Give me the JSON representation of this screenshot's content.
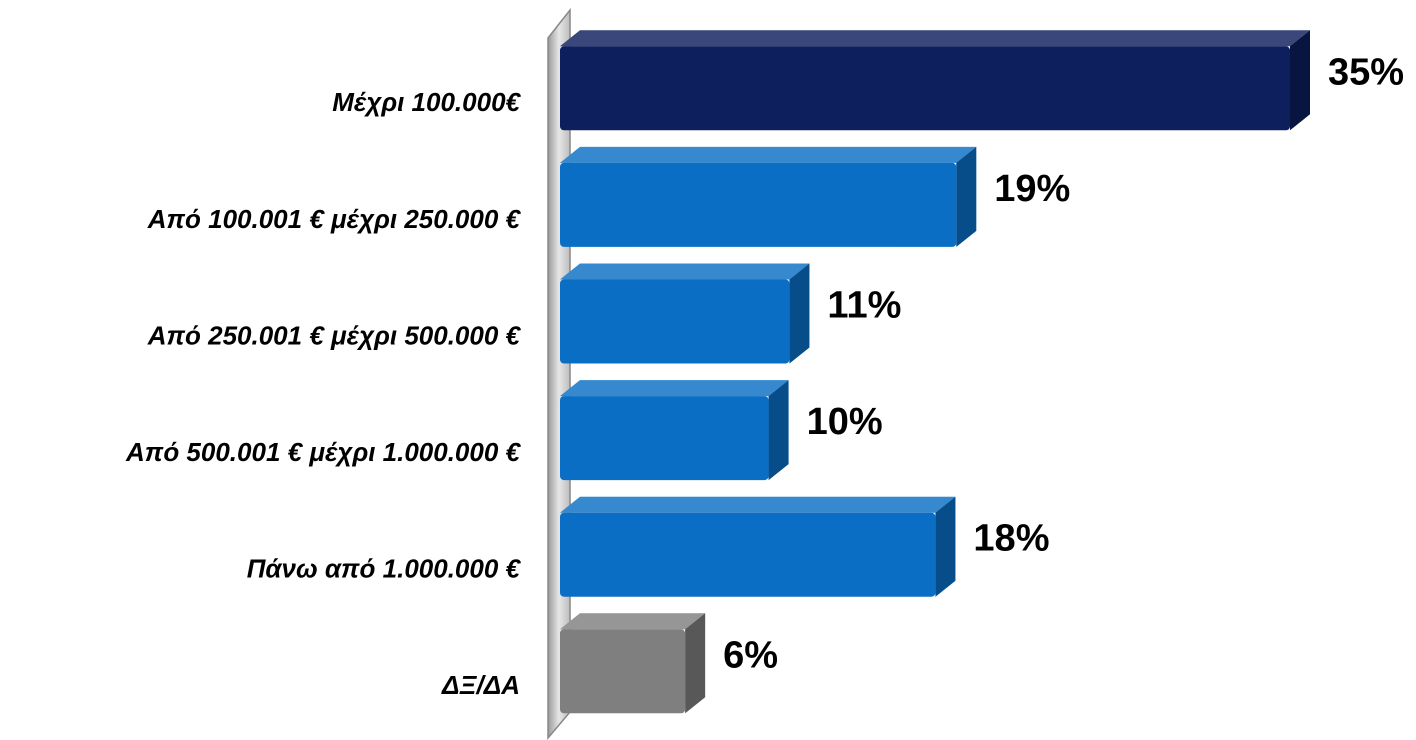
{
  "chart_data": {
    "type": "bar",
    "orientation": "horizontal",
    "categories": [
      "Μέχρι 100.000€",
      "Από 100.001 € μέχρι 250.000 €",
      "Από 250.001 € μέχρι 500.000 €",
      "Από 500.001 € μέχρι 1.000.000 €",
      "Πάνω από 1.000.000 €",
      "ΔΞ/ΔΑ"
    ],
    "values": [
      35,
      19,
      11,
      10,
      18,
      6
    ],
    "value_labels": [
      "35%",
      "19%",
      "11%",
      "10%",
      "18%",
      "6%"
    ],
    "colors": [
      "#0e1f5e",
      "#0a6fc4",
      "#0a6fc4",
      "#0a6fc4",
      "#0a6fc4",
      "#7f7f7f"
    ]
  }
}
